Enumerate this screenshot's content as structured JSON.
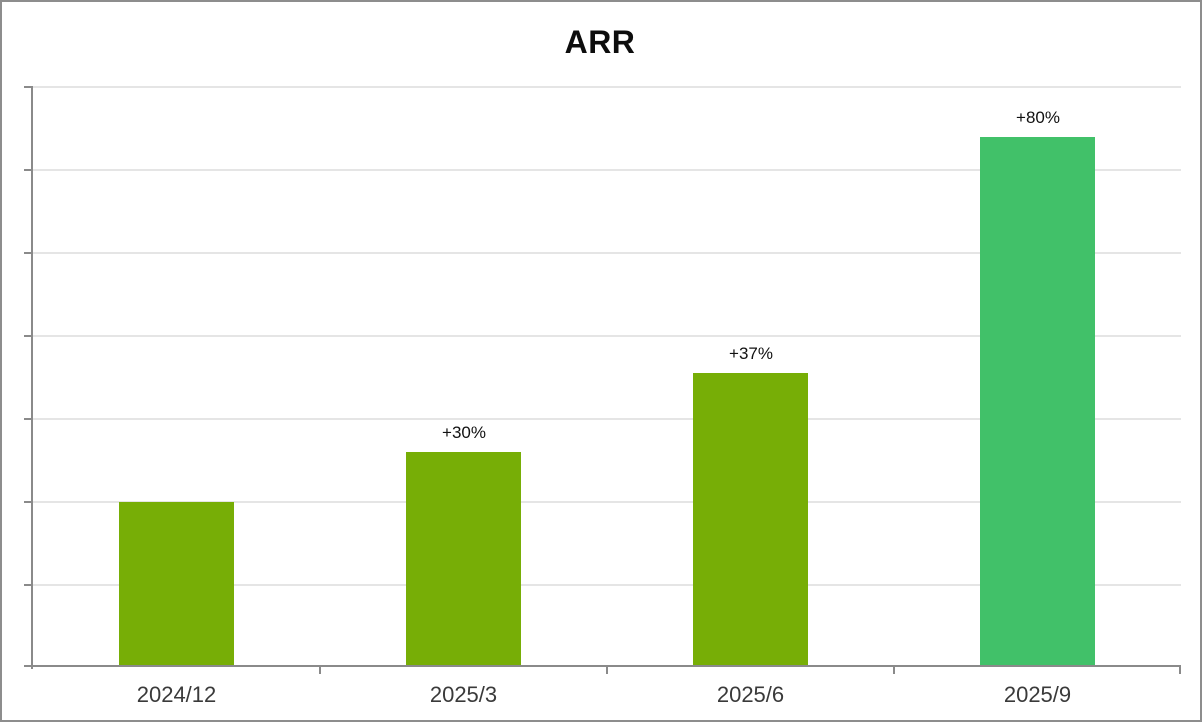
{
  "window": {
    "background_color": "#ffffff",
    "border_color": "#8d8d8d"
  },
  "chart_data": {
    "type": "bar",
    "title": "ARR",
    "categories": [
      "2024/12",
      "2025/3",
      "2025/6",
      "2025/9"
    ],
    "values": [
      100,
      130,
      178,
      321
    ],
    "bar_labels": [
      "",
      "+30%",
      "+37%",
      "+80%"
    ],
    "bar_colors": [
      "#77AE06",
      "#77AE06",
      "#77AE06",
      "#41C169"
    ],
    "xlabel": "",
    "ylabel": "",
    "ylim": [
      0,
      352
    ],
    "y_tick_labels_visible": false,
    "gridline_count": 7,
    "grid": true,
    "legend": "none",
    "grid_color": "#e5e5e5",
    "axis_color": "#8a8a8a",
    "title_color": "#0d0d0d",
    "bar_label_color": "#111111",
    "tick_label_color": "#3a3a3a"
  }
}
